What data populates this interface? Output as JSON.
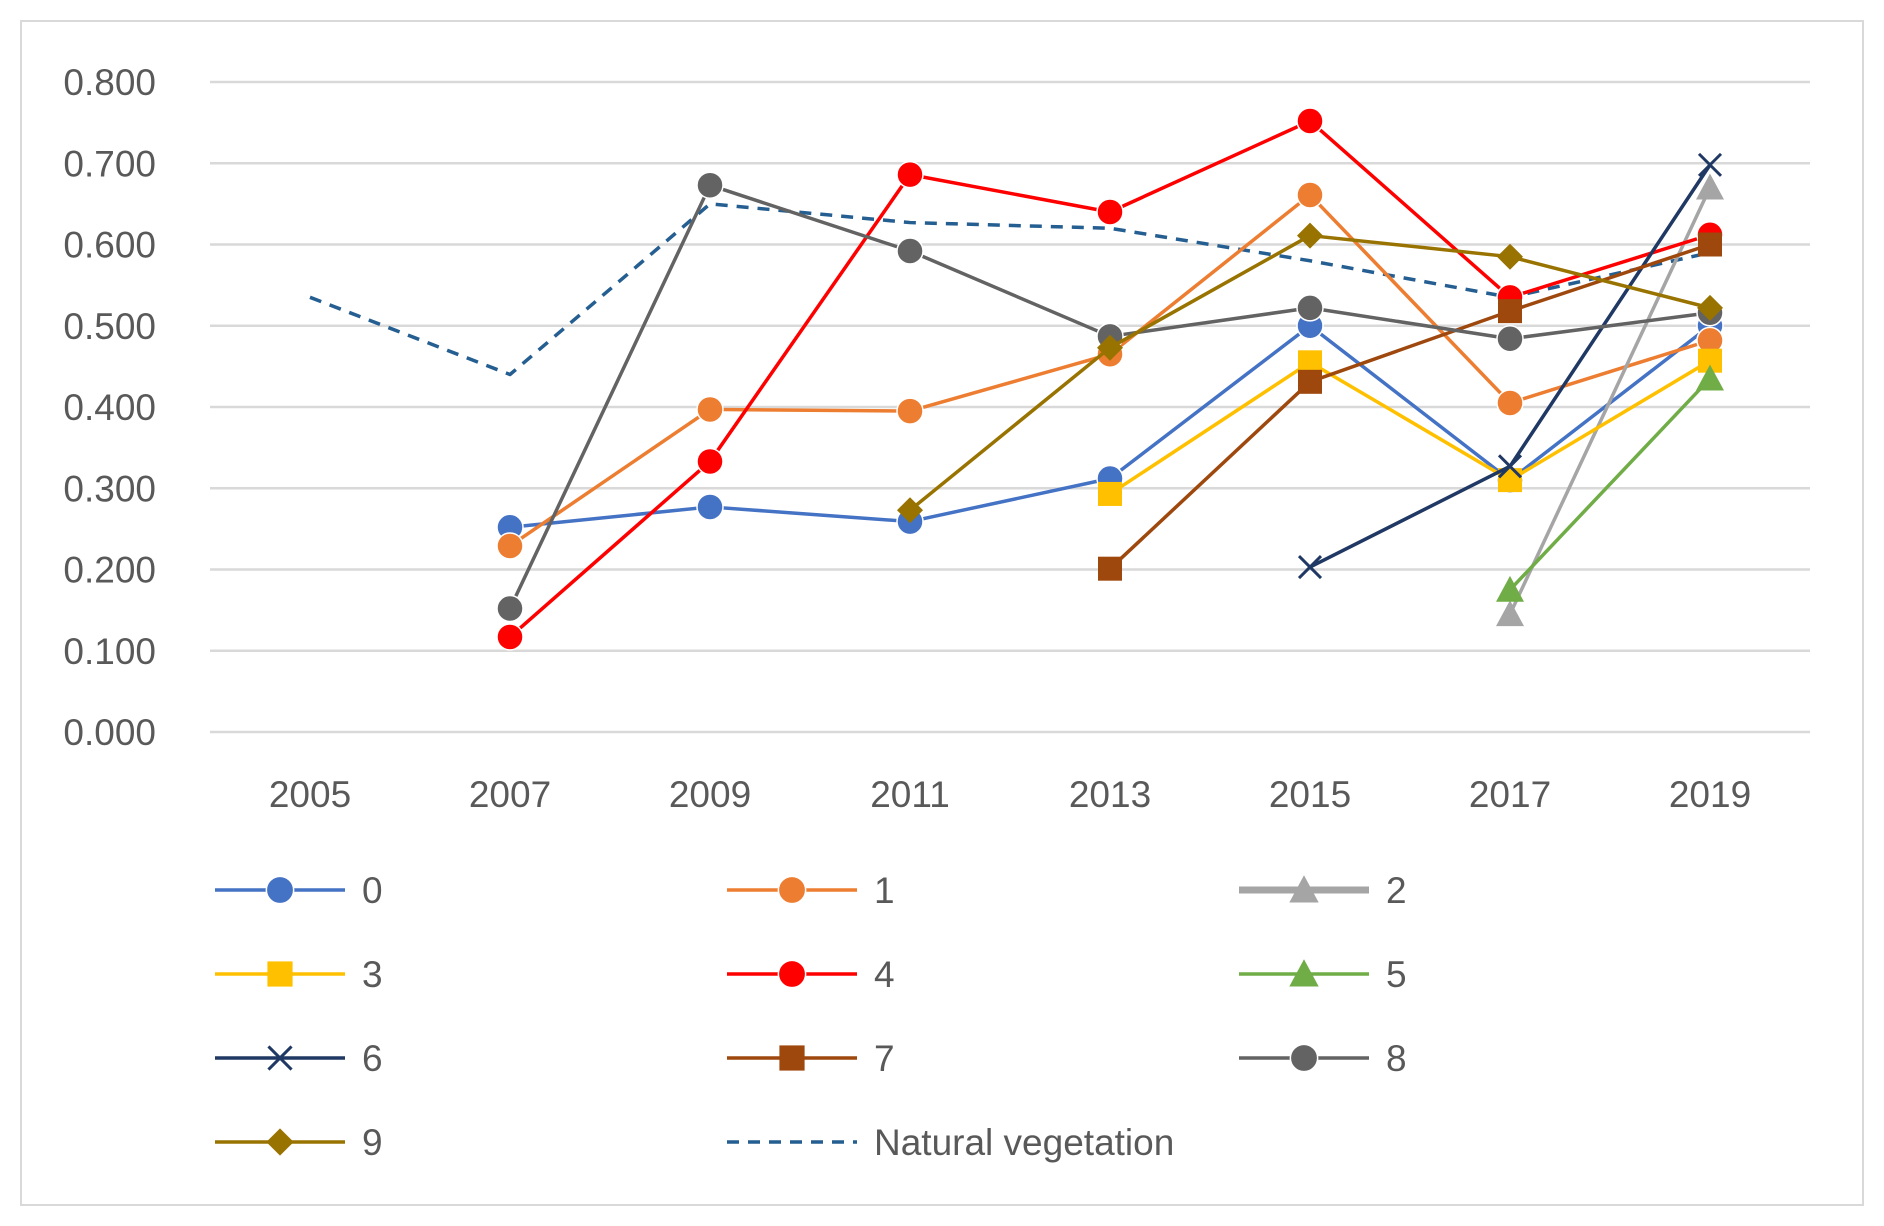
{
  "chart_data": {
    "type": "line",
    "title": "",
    "xlabel": "",
    "ylabel": "",
    "categories": [
      "2005",
      "2007",
      "2009",
      "2011",
      "2013",
      "2015",
      "2017",
      "2019"
    ],
    "ylim": [
      0,
      0.8
    ],
    "y_ticks": [
      "0.000",
      "0.100",
      "0.200",
      "0.300",
      "0.400",
      "0.500",
      "0.600",
      "0.700",
      "0.800"
    ],
    "grid": true,
    "legend_position": "bottom",
    "series": [
      {
        "name": "0",
        "color": "#4472C4",
        "marker": "circle",
        "dash": false,
        "values": [
          null,
          0.252,
          0.277,
          0.259,
          0.312,
          0.5,
          0.31,
          0.5
        ]
      },
      {
        "name": "1",
        "color": "#ED7D31",
        "marker": "circle",
        "dash": false,
        "values": [
          null,
          0.229,
          0.397,
          0.395,
          0.465,
          0.661,
          0.405,
          0.482
        ]
      },
      {
        "name": "2",
        "color": "#A5A5A5",
        "marker": "triangle",
        "dash": false,
        "values": [
          null,
          null,
          null,
          null,
          null,
          null,
          0.145,
          0.67
        ]
      },
      {
        "name": "3",
        "color": "#FFC000",
        "marker": "square",
        "dash": false,
        "values": [
          null,
          null,
          null,
          null,
          0.293,
          0.455,
          0.31,
          0.457
        ]
      },
      {
        "name": "4",
        "color": "#FF0000",
        "marker": "circle",
        "dash": false,
        "values": [
          null,
          0.117,
          0.333,
          0.686,
          0.64,
          0.752,
          0.535,
          0.612
        ]
      },
      {
        "name": "5",
        "color": "#70AD47",
        "marker": "triangle",
        "dash": false,
        "values": [
          null,
          null,
          null,
          null,
          null,
          null,
          0.175,
          0.435
        ]
      },
      {
        "name": "6",
        "color": "#203864",
        "marker": "x",
        "dash": false,
        "values": [
          null,
          null,
          null,
          null,
          null,
          0.203,
          0.327,
          0.698
        ]
      },
      {
        "name": "7",
        "color": "#9E480E",
        "marker": "square",
        "dash": false,
        "values": [
          null,
          null,
          null,
          null,
          0.201,
          0.431,
          0.518,
          0.6
        ]
      },
      {
        "name": "8",
        "color": "#636363",
        "marker": "circle",
        "dash": false,
        "values": [
          null,
          0.152,
          0.673,
          0.592,
          0.487,
          0.522,
          0.484,
          0.516
        ]
      },
      {
        "name": "9",
        "color": "#997300",
        "marker": "diamond",
        "dash": false,
        "values": [
          null,
          null,
          null,
          0.273,
          0.473,
          0.611,
          0.585,
          0.522
        ]
      },
      {
        "name": "Natural vegetation",
        "color": "#255E91",
        "marker": "none",
        "dash": true,
        "values": [
          0.535,
          0.44,
          0.65,
          0.627,
          0.62,
          0.58,
          0.535,
          0.59
        ]
      }
    ]
  }
}
